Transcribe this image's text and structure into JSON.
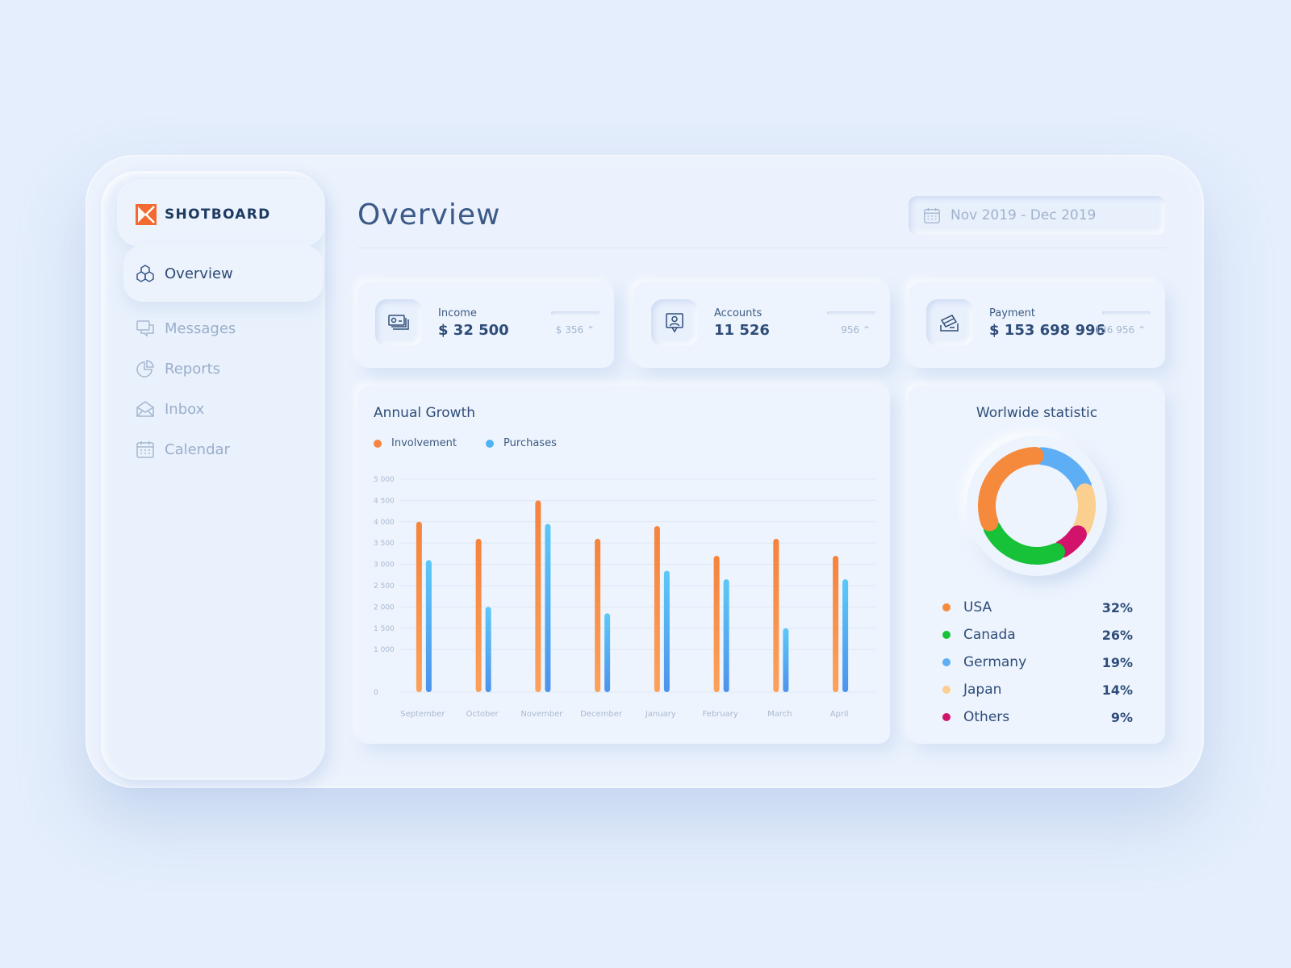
{
  "brand": {
    "name": "SHOTBOARD",
    "logo_color": "#f26a2f"
  },
  "nav": [
    {
      "label": "Overview",
      "icon": "cubes-icon",
      "active": true
    },
    {
      "label": "Messages",
      "icon": "messages-icon",
      "active": false
    },
    {
      "label": "Reports",
      "icon": "pie-chart-icon",
      "active": false
    },
    {
      "label": "Inbox",
      "icon": "envelope-open-icon",
      "active": false
    },
    {
      "label": "Calendar",
      "icon": "calendar-icon",
      "active": false
    }
  ],
  "header": {
    "title": "Overview",
    "date_range": "Nov 2019 - Dec 2019"
  },
  "stats": [
    {
      "label": "Income",
      "value": "$ 32 500",
      "delta": "$ 356",
      "icon": "money-bills-icon"
    },
    {
      "label": "Accounts",
      "value": "11 526",
      "delta": "956",
      "icon": "user-badge-icon"
    },
    {
      "label": "Payment",
      "value": "$ 153 698 996",
      "delta": "136 956",
      "icon": "card-hand-icon"
    }
  ],
  "growth": {
    "title": "Annual Growth",
    "chart_data": {
      "type": "bar",
      "title": "Annual Growth",
      "categories": [
        "September",
        "October",
        "November",
        "December",
        "January",
        "February",
        "March",
        "April"
      ],
      "series": [
        {
          "name": "Involvement",
          "color": "#f5853f",
          "values": [
            4000,
            3600,
            4500,
            3600,
            3900,
            3200,
            3600,
            3200
          ]
        },
        {
          "name": "Purchases",
          "color": "#4fb3f4",
          "values": [
            3100,
            2000,
            3950,
            1850,
            2850,
            2650,
            1500,
            2650
          ]
        }
      ],
      "y_ticks": [
        "5 000",
        "4 500",
        "4 000",
        "3 500",
        "3 000",
        "2 500",
        "2 000",
        "1 500",
        "1 000",
        "0"
      ],
      "ylim": [
        0,
        5000
      ],
      "grid": true,
      "legend_position": "top-left"
    }
  },
  "worldwide": {
    "title": "Worlwide statistic",
    "chart_data": {
      "type": "pie",
      "labels": [
        "USA",
        "Canada",
        "Germany",
        "Japan",
        "Others"
      ],
      "values": [
        32,
        26,
        19,
        14,
        9
      ],
      "percent_labels": [
        "32%",
        "26%",
        "19%",
        "14%",
        "9%"
      ],
      "colors": [
        "#f68a3c",
        "#17c238",
        "#5daef5",
        "#fbcf90",
        "#d3136b"
      ]
    }
  }
}
